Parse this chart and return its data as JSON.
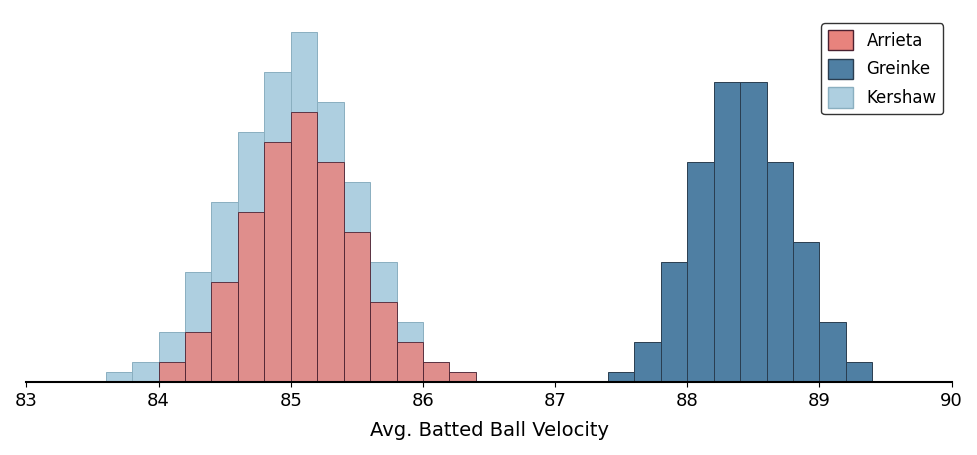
{
  "xlabel": "Avg. Batted Ball Velocity",
  "xlim": [
    83,
    90
  ],
  "xticks": [
    83,
    84,
    85,
    86,
    87,
    88,
    89,
    90
  ],
  "arrieta_color": "#E8837D",
  "greinke_color": "#4F7FA3",
  "kershaw_color": "#AECFE0",
  "arrieta_edgecolor": "#4A2030",
  "greinke_edgecolor": "#2A3D50",
  "kershaw_edgecolor": "#8AAFC0",
  "bin_width": 0.2,
  "arrieta_bins": [
    84.0,
    84.2,
    84.4,
    84.6,
    84.8,
    85.0,
    85.2,
    85.4,
    85.6,
    85.8,
    86.0,
    86.2
  ],
  "arrieta_heights": [
    2,
    5,
    10,
    17,
    24,
    27,
    22,
    15,
    8,
    4,
    2,
    1
  ],
  "kershaw_bins": [
    83.6,
    83.8,
    84.0,
    84.2,
    84.4,
    84.6,
    84.8,
    85.0,
    85.2,
    85.4,
    85.6,
    85.8,
    86.0,
    86.2
  ],
  "kershaw_heights": [
    1,
    2,
    5,
    11,
    18,
    25,
    31,
    35,
    28,
    20,
    12,
    6,
    2,
    1
  ],
  "greinke_bins": [
    87.4,
    87.6,
    87.8,
    88.0,
    88.2,
    88.4,
    88.6,
    88.8,
    89.0,
    89.2
  ],
  "greinke_heights": [
    1,
    4,
    12,
    22,
    30,
    30,
    22,
    14,
    6,
    2
  ]
}
